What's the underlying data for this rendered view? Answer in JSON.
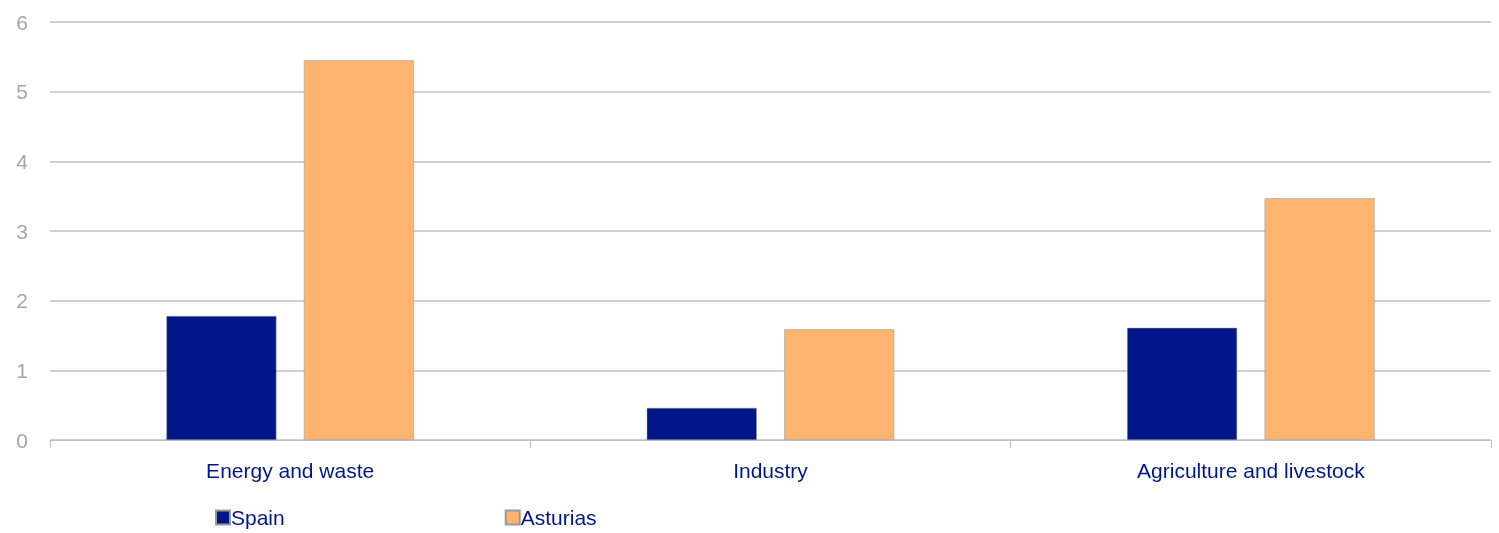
{
  "chart_data": {
    "type": "bar",
    "categories": [
      "Energy and waste",
      "Industry",
      "Agriculture and livestock"
    ],
    "series": [
      {
        "name": "Spain",
        "color": "#001689",
        "values": [
          1.78,
          0.46,
          1.61
        ]
      },
      {
        "name": "Asturias",
        "color": "#fdb46e",
        "values": [
          5.45,
          1.59,
          3.47
        ]
      }
    ],
    "ylim": [
      0,
      6
    ],
    "yticks": [
      0,
      1,
      2,
      3,
      4,
      5,
      6
    ],
    "grid": "y",
    "legend": "bottom left"
  }
}
